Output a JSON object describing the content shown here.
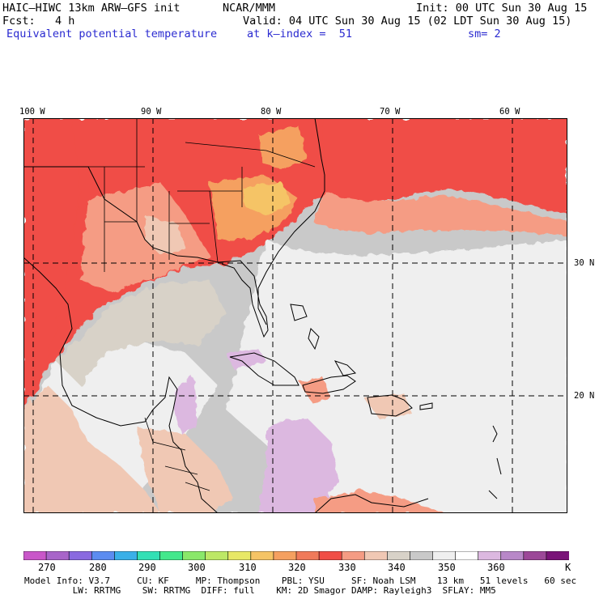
{
  "header": {
    "model": "HAIC–HIWC 13km ARW–GFS init",
    "center": "NCAR/MMM",
    "init": "Init: 00 UTC Sun 30 Aug 15",
    "fcst": "Fcst:   4 h",
    "valid": "Valid: 04 UTC Sun 30 Aug 15 (02 LDT Sun 30 Aug 15)",
    "field": "Equivalent potential temperature",
    "level": "at k–index =  51",
    "smooth": "sm= 2"
  },
  "map": {
    "lon_labels": [
      "100 W",
      "90 W",
      "80 W",
      "70 W",
      "60 W"
    ],
    "lat_labels": [
      "30 N",
      "20 N"
    ]
  },
  "colorbar": {
    "ticks": [
      "270",
      "280",
      "290",
      "300",
      "310",
      "320",
      "330",
      "340",
      "350",
      "360",
      "K"
    ],
    "colors": [
      "#c957c9",
      "#a865c9",
      "#8a6ae0",
      "#5c8cf0",
      "#3ab0e8",
      "#33e0b5",
      "#44e88c",
      "#8ae86a",
      "#bde866",
      "#e8e866",
      "#f5c466",
      "#f5a060",
      "#f07a5a",
      "#f04e46",
      "#f59c84",
      "#f0c8b4",
      "#d8d2c8",
      "#c9c9c9",
      "#efefef",
      "#ffffff",
      "#dcb8e0",
      "#b888c8",
      "#9c4898",
      "#7a1478"
    ]
  },
  "footer": {
    "line1": "Model Info: V3.7     CU: KF     MP: Thompson    PBL: YSU     SF: Noah LSM    13 km   51 levels   60 sec",
    "line2": "         LW: RRTMG    SW: RRTMG  DIFF: full    KM: 2D Smagor DAMP: Rayleigh3  SFLAY: MM5"
  }
}
